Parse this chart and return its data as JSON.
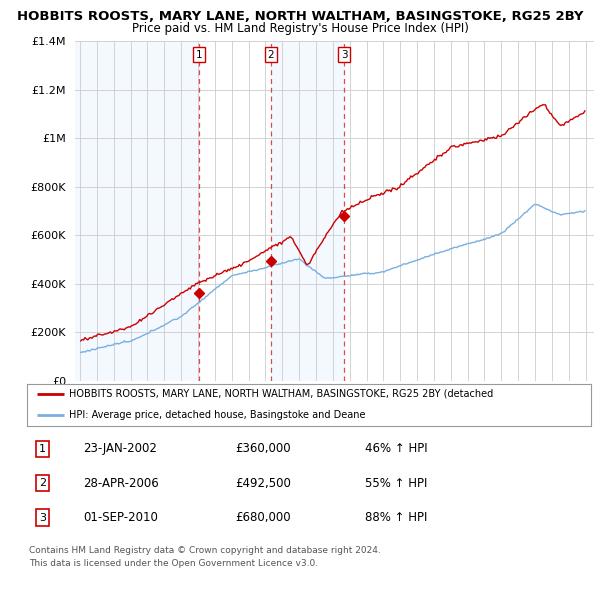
{
  "title": "HOBBITS ROOSTS, MARY LANE, NORTH WALTHAM, BASINGSTOKE, RG25 2BY",
  "subtitle": "Price paid vs. HM Land Registry's House Price Index (HPI)",
  "legend_line1": "HOBBITS ROOSTS, MARY LANE, NORTH WALTHAM, BASINGSTOKE, RG25 2BY (detached",
  "legend_line2": "HPI: Average price, detached house, Basingstoke and Deane",
  "footer1": "Contains HM Land Registry data © Crown copyright and database right 2024.",
  "footer2": "This data is licensed under the Open Government Licence v3.0.",
  "sale_events": [
    {
      "num": 1,
      "date": "23-JAN-2002",
      "price": "£360,000",
      "hpi": "46% ↑ HPI",
      "x": 2002.06
    },
    {
      "num": 2,
      "date": "28-APR-2006",
      "price": "£492,500",
      "hpi": "55% ↑ HPI",
      "x": 2006.32
    },
    {
      "num": 3,
      "date": "01-SEP-2010",
      "price": "£680,000",
      "hpi": "88% ↑ HPI",
      "x": 2010.67
    }
  ],
  "sale_prices": [
    360000,
    492500,
    680000
  ],
  "red_color": "#cc0000",
  "blue_color": "#7aafe0",
  "shade_color": "#ddeeff",
  "background_color": "#ffffff",
  "grid_color": "#cccccc",
  "ylim": [
    0,
    1400000
  ],
  "yticks": [
    0,
    200000,
    400000,
    600000,
    800000,
    1000000,
    1200000,
    1400000
  ],
  "xlim_start": 1994.7,
  "xlim_end": 2025.5
}
